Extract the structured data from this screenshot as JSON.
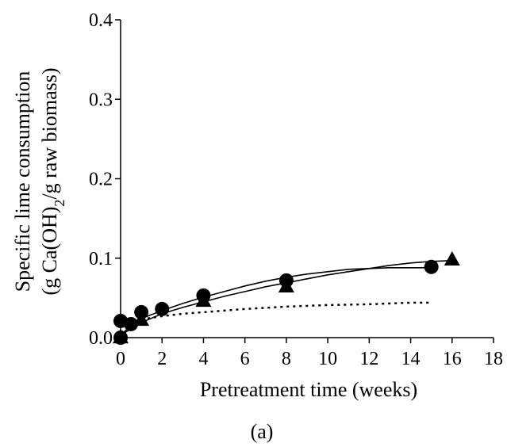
{
  "chart_data": {
    "type": "scatter",
    "title": "",
    "caption": "(a)",
    "xlabel": "Pretreatment time (weeks)",
    "ylabel_lines": [
      "Specific lime consumption",
      "(g Ca(OH)",
      "2",
      "/g raw biomass)"
    ],
    "xlim": [
      0,
      18
    ],
    "ylim": [
      0,
      0.4
    ],
    "x_ticks": [
      0,
      2,
      4,
      6,
      8,
      10,
      12,
      14,
      16,
      18
    ],
    "x_tick_labels": [
      "0",
      "2",
      "4",
      "6",
      "8",
      "10",
      "12",
      "14",
      "16",
      "18"
    ],
    "y_ticks": [
      0,
      0.1,
      0.2,
      0.3,
      0.4
    ],
    "y_tick_labels": [
      "0.0",
      "0.1",
      "0.2",
      "0.3",
      "0.4"
    ],
    "grid": false,
    "legend": "none",
    "series": [
      {
        "marker": "circle",
        "points": [
          [
            0,
            0.0
          ],
          [
            0,
            0.021
          ],
          [
            0.5,
            0.017
          ],
          [
            1,
            0.032
          ],
          [
            2,
            0.036
          ],
          [
            4,
            0.053
          ],
          [
            8,
            0.072
          ],
          [
            15,
            0.089
          ]
        ],
        "fit": [
          [
            0,
            0.003
          ],
          [
            0.5,
            0.015
          ],
          [
            1,
            0.024
          ],
          [
            2,
            0.034
          ],
          [
            3,
            0.043
          ],
          [
            4,
            0.051
          ],
          [
            5,
            0.058
          ],
          [
            6,
            0.065
          ],
          [
            7,
            0.071
          ],
          [
            8,
            0.076
          ],
          [
            9,
            0.08
          ],
          [
            10,
            0.083
          ],
          [
            11,
            0.086
          ],
          [
            12,
            0.087
          ],
          [
            13,
            0.088
          ],
          [
            14,
            0.088
          ],
          [
            15,
            0.088
          ]
        ],
        "fit_style": "solid"
      },
      {
        "marker": "triangle",
        "points": [
          [
            0,
            0.0
          ],
          [
            1,
            0.022
          ],
          [
            4,
            0.046
          ],
          [
            8,
            0.064
          ],
          [
            16,
            0.098
          ]
        ],
        "fit": [
          [
            0,
            0.003
          ],
          [
            1,
            0.019
          ],
          [
            2,
            0.03
          ],
          [
            3,
            0.038
          ],
          [
            4,
            0.045
          ],
          [
            5,
            0.052
          ],
          [
            6,
            0.058
          ],
          [
            7,
            0.064
          ],
          [
            8,
            0.069
          ],
          [
            9,
            0.074
          ],
          [
            10,
            0.079
          ],
          [
            11,
            0.083
          ],
          [
            12,
            0.087
          ],
          [
            13,
            0.091
          ],
          [
            14,
            0.094
          ],
          [
            15,
            0.096
          ],
          [
            16,
            0.097
          ]
        ],
        "fit_style": "solid"
      },
      {
        "marker": "none",
        "points": [],
        "fit": [
          [
            1,
            0.023
          ],
          [
            2,
            0.027
          ],
          [
            3,
            0.03
          ],
          [
            4,
            0.032
          ],
          [
            6,
            0.036
          ],
          [
            8,
            0.039
          ],
          [
            10,
            0.041
          ],
          [
            12,
            0.042
          ],
          [
            14,
            0.044
          ],
          [
            15,
            0.044
          ]
        ],
        "fit_style": "dotted"
      }
    ]
  }
}
